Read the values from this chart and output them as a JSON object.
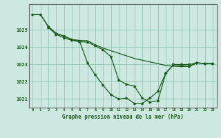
{
  "title": "Graphe pression niveau de la mer (hPa)",
  "bg_color": "#cce8e0",
  "grid_color": "#99ccbb",
  "line_color": "#1a5c1a",
  "xlim": [
    -0.5,
    23.5
  ],
  "ylim": [
    1020.5,
    1026.5
  ],
  "yticks": [
    1021,
    1022,
    1023,
    1024,
    1025
  ],
  "xticks": [
    0,
    1,
    2,
    3,
    4,
    5,
    6,
    7,
    8,
    9,
    10,
    11,
    12,
    13,
    14,
    15,
    16,
    17,
    18,
    19,
    20,
    21,
    22,
    23
  ],
  "series1_x": [
    0,
    1,
    2,
    3,
    4,
    5,
    6,
    7,
    8,
    9,
    10,
    11,
    12,
    13,
    14,
    15,
    16,
    17,
    18,
    19,
    20,
    21,
    22,
    23
  ],
  "series1_y": [
    1025.9,
    1025.9,
    1025.2,
    1024.8,
    1024.65,
    1024.45,
    1024.4,
    1024.38,
    1024.15,
    1023.95,
    1023.8,
    1023.65,
    1023.5,
    1023.35,
    1023.25,
    1023.15,
    1023.05,
    1022.95,
    1022.9,
    1022.88,
    1022.9,
    1023.1,
    1023.05,
    1023.05
  ],
  "series2_x": [
    0,
    1,
    2,
    3,
    4,
    5,
    6,
    7,
    8,
    9,
    10,
    11,
    12,
    13,
    14,
    15,
    16,
    17,
    18,
    19,
    20,
    21,
    22,
    23
  ],
  "series2_y": [
    1025.9,
    1025.9,
    1025.2,
    1024.8,
    1024.65,
    1024.45,
    1024.35,
    1023.1,
    1022.4,
    1021.8,
    1021.25,
    1021.0,
    1021.05,
    1020.75,
    1020.75,
    1021.05,
    1021.45,
    1022.5,
    1023.0,
    1023.0,
    1023.0,
    1023.1,
    1023.05,
    1023.05
  ],
  "series3_x": [
    2,
    3,
    4,
    5,
    6,
    7,
    8,
    9,
    10,
    11,
    12,
    13,
    14,
    15,
    16,
    17,
    18,
    19,
    20,
    21,
    22,
    23
  ],
  "series3_y": [
    1025.15,
    1024.75,
    1024.55,
    1024.4,
    1024.32,
    1024.3,
    1024.08,
    1023.85,
    1023.45,
    1022.1,
    1021.85,
    1021.75,
    1021.05,
    1020.82,
    1020.9,
    1022.48,
    1023.0,
    1022.95,
    1022.88,
    1023.1,
    1023.05,
    1023.05
  ]
}
